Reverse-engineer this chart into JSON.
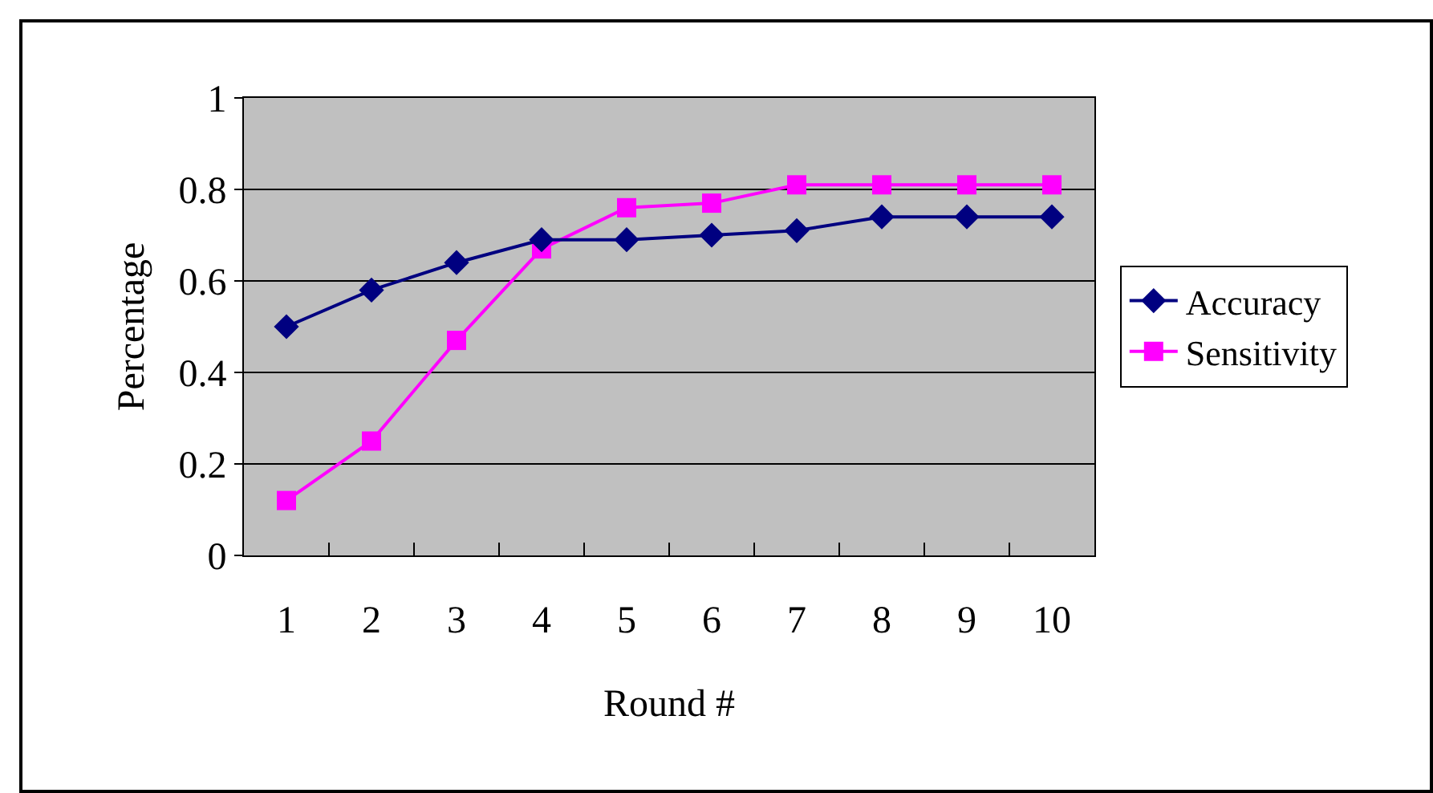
{
  "chart_data": {
    "type": "line",
    "xlabel": "Round #",
    "ylabel": "Percentage",
    "categories": [
      "1",
      "2",
      "3",
      "4",
      "5",
      "6",
      "7",
      "8",
      "9",
      "10"
    ],
    "series": [
      {
        "name": "Accuracy",
        "color": "#000080",
        "marker": "diamond",
        "values": [
          0.5,
          0.58,
          0.64,
          0.69,
          0.69,
          0.7,
          0.71,
          0.74,
          0.74,
          0.74
        ]
      },
      {
        "name": "Sensitivity",
        "color": "#ff00ff",
        "marker": "square",
        "values": [
          0.12,
          0.25,
          0.47,
          0.67,
          0.76,
          0.77,
          0.81,
          0.81,
          0.81,
          0.81
        ]
      }
    ],
    "ylim": [
      0,
      1
    ],
    "yticks": [
      0,
      0.2,
      0.4,
      0.6,
      0.8,
      1
    ],
    "grid": "y",
    "legend": "right",
    "line_style": "solid"
  }
}
